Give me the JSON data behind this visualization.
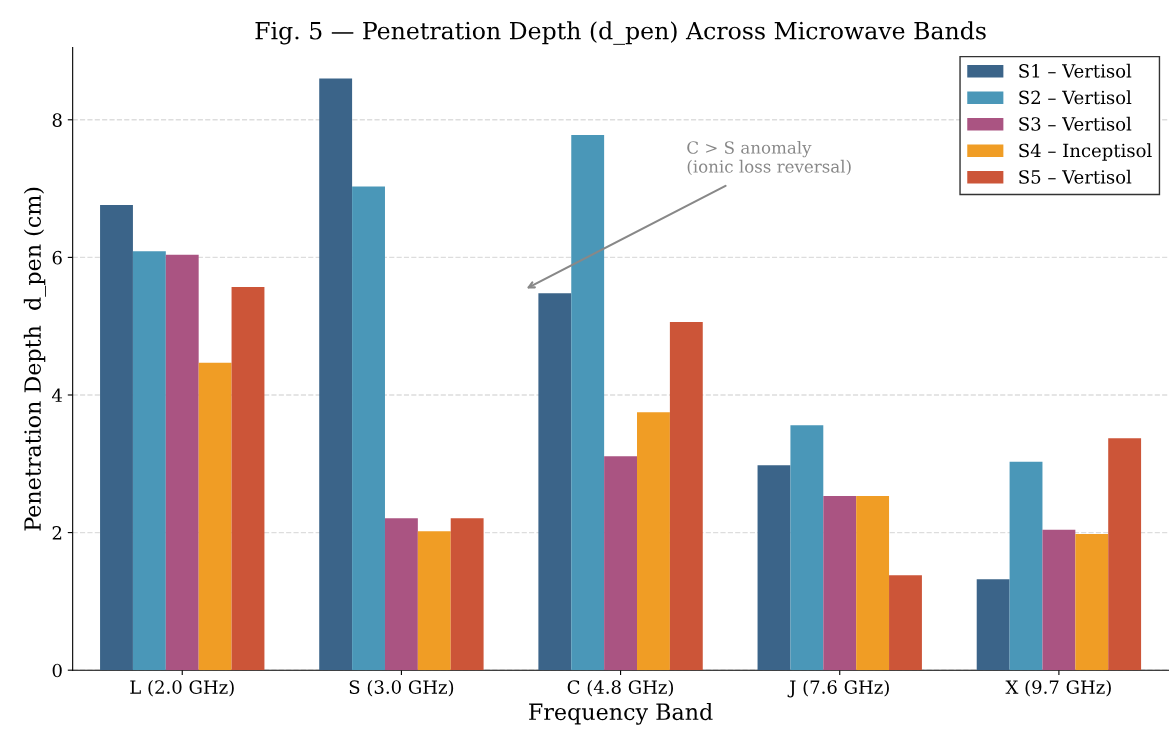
{
  "chart_data": {
    "type": "bar",
    "title": "Fig. 5 — Penetration Depth (d_pen) Across Microwave Bands",
    "xlabel": "Frequency Band",
    "ylabel": "Penetration Depth  d_pen (cm)",
    "categories": [
      "L (2.0 GHz)",
      "S (3.0 GHz)",
      "C (4.8 GHz)",
      "J (7.6 GHz)",
      "X (9.7 GHz)"
    ],
    "series": [
      {
        "name": "S1 – Vertisol",
        "color": "#3b6489",
        "values": [
          6.76,
          8.6,
          5.48,
          2.98,
          1.32
        ]
      },
      {
        "name": "S2 – Vertisol",
        "color": "#4a97b8",
        "values": [
          6.09,
          7.03,
          7.78,
          3.56,
          3.03
        ]
      },
      {
        "name": "S3 – Vertisol",
        "color": "#aa5482",
        "values": [
          6.04,
          2.21,
          3.11,
          2.53,
          2.04
        ]
      },
      {
        "name": "S4 – Inceptisol",
        "color": "#f09d25",
        "values": [
          4.47,
          2.02,
          3.75,
          2.53,
          1.98
        ]
      },
      {
        "name": "S5 – Vertisol",
        "color": "#cc5538",
        "values": [
          5.57,
          2.21,
          5.06,
          1.38,
          3.37
        ]
      }
    ],
    "ylim": [
      0,
      9.05
    ],
    "yticks": [
      0,
      2,
      4,
      6,
      8
    ],
    "grid": "y",
    "legend": "top right",
    "annotations": [
      "C > S anomaly\n(ionic loss reversal)"
    ]
  }
}
